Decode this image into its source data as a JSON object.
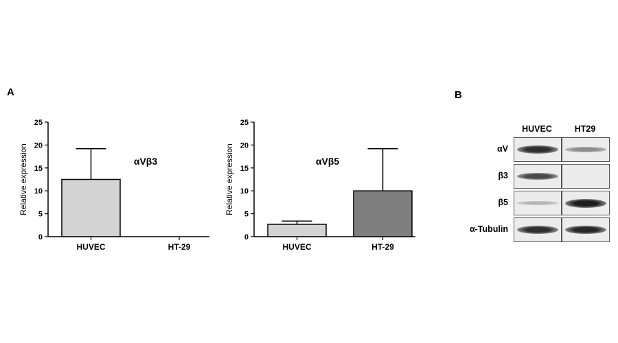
{
  "panel_a_label": "A",
  "panel_b_label": "B",
  "chart_data": [
    {
      "type": "bar",
      "title": "αVβ3",
      "xlabel": "",
      "ylabel": "Relative expression",
      "categories": [
        "HUVEC",
        "HT-29"
      ],
      "values": [
        12.5,
        0
      ],
      "error_upper": [
        19.2,
        0
      ],
      "bar_colors": [
        "#d3d3d3",
        "#d3d3d3"
      ],
      "ylim": [
        0,
        25
      ],
      "yticks": [
        0,
        5,
        10,
        15,
        20,
        25
      ],
      "grid": false
    },
    {
      "type": "bar",
      "title": "αVβ5",
      "xlabel": "",
      "ylabel": "Relative expression",
      "categories": [
        "HUVEC",
        "HT-29"
      ],
      "values": [
        2.7,
        10.0
      ],
      "error_upper": [
        3.4,
        19.2
      ],
      "bar_colors": [
        "#d3d3d3",
        "#7f7f7f"
      ],
      "ylim": [
        0,
        25
      ],
      "yticks": [
        0,
        5,
        10,
        15,
        20,
        25
      ],
      "grid": false
    }
  ],
  "western_blot": {
    "columns": [
      "HUVEC",
      "HT29"
    ],
    "rows": [
      {
        "label": "αV",
        "intensity": [
          0.9,
          0.35
        ]
      },
      {
        "label": "β3",
        "intensity": [
          0.75,
          0.0
        ]
      },
      {
        "label": "β5",
        "intensity": [
          0.12,
          1.0
        ]
      },
      {
        "label": "α-Tubulin",
        "intensity": [
          0.9,
          0.95
        ]
      }
    ]
  }
}
